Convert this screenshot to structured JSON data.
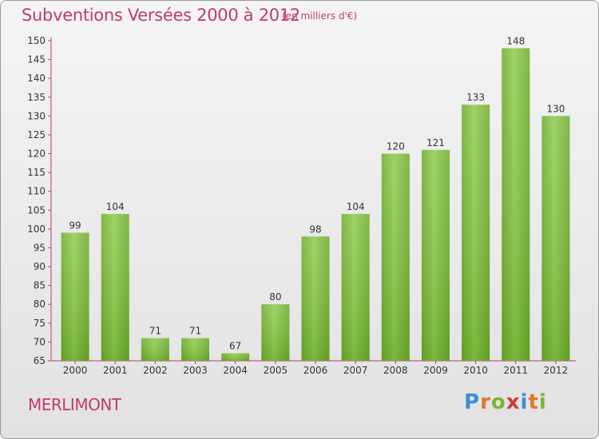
{
  "header": {
    "title": "Subventions Versées 2000 à 2012",
    "unit": "(en milliers d'€)"
  },
  "commune": "MERLIMONT",
  "logo": {
    "letters": [
      "P",
      "r",
      "o",
      "x",
      "i",
      "t",
      "i"
    ],
    "colors": [
      "#3a8fd6",
      "#e0762a",
      "#79b52e",
      "#d23a3a",
      "#3a8fd6",
      "#e0762a",
      "#79b52e"
    ]
  },
  "chart_data": {
    "type": "bar",
    "categories": [
      "2000",
      "2001",
      "2002",
      "2003",
      "2004",
      "2005",
      "2006",
      "2007",
      "2008",
      "2009",
      "2010",
      "2011",
      "2012"
    ],
    "values": [
      99,
      104,
      71,
      71,
      67,
      80,
      98,
      104,
      120,
      121,
      133,
      148,
      130
    ],
    "ylim": [
      65,
      150
    ],
    "yticks": [
      65,
      70,
      75,
      80,
      85,
      90,
      95,
      100,
      105,
      110,
      115,
      120,
      125,
      130,
      135,
      140,
      145,
      150
    ],
    "grid": false,
    "bar_color": "#7fbf3a",
    "axis_color": "#c03a6e"
  }
}
